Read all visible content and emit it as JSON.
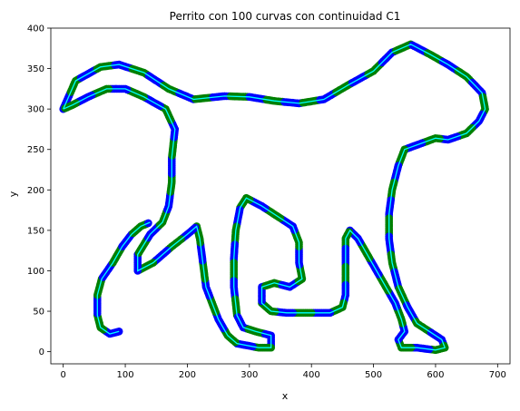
{
  "chart_data": {
    "type": "scatter",
    "title": "Perrito con 100 curvas con continuidad C1",
    "xlabel": "x",
    "ylabel": "y",
    "xlim": [
      -20,
      720
    ],
    "ylim": [
      -15,
      400
    ],
    "xticks": [
      0,
      100,
      200,
      300,
      400,
      500,
      600,
      700
    ],
    "yticks": [
      0,
      50,
      100,
      150,
      200,
      250,
      300,
      350,
      400
    ],
    "grid": false,
    "legend": "none",
    "colors": {
      "points_primary": "#0000ff",
      "points_secondary": "#008000",
      "curve": "#00ffff",
      "curve_alt": "#00ff00"
    },
    "outline": [
      [
        0,
        300
      ],
      [
        20,
        335
      ],
      [
        60,
        352
      ],
      [
        90,
        355
      ],
      [
        130,
        345
      ],
      [
        170,
        325
      ],
      [
        210,
        312
      ],
      [
        260,
        316
      ],
      [
        300,
        315
      ],
      [
        340,
        310
      ],
      [
        380,
        307
      ],
      [
        420,
        312
      ],
      [
        460,
        330
      ],
      [
        500,
        347
      ],
      [
        530,
        370
      ],
      [
        560,
        380
      ],
      [
        590,
        368
      ],
      [
        620,
        355
      ],
      [
        650,
        340
      ],
      [
        675,
        320
      ],
      [
        680,
        300
      ],
      [
        670,
        285
      ],
      [
        650,
        270
      ],
      [
        620,
        262
      ],
      [
        600,
        264
      ],
      [
        575,
        257
      ],
      [
        550,
        250
      ],
      [
        540,
        230
      ],
      [
        530,
        200
      ],
      [
        525,
        170
      ],
      [
        525,
        140
      ],
      [
        530,
        110
      ],
      [
        540,
        80
      ],
      [
        555,
        55
      ],
      [
        570,
        35
      ],
      [
        590,
        25
      ],
      [
        610,
        15
      ],
      [
        615,
        5
      ],
      [
        600,
        2
      ],
      [
        570,
        5
      ],
      [
        545,
        5
      ],
      [
        540,
        15
      ],
      [
        550,
        25
      ],
      [
        545,
        40
      ],
      [
        535,
        60
      ],
      [
        520,
        80
      ],
      [
        505,
        100
      ],
      [
        490,
        120
      ],
      [
        475,
        140
      ],
      [
        462,
        150
      ],
      [
        455,
        140
      ],
      [
        455,
        100
      ],
      [
        455,
        70
      ],
      [
        450,
        55
      ],
      [
        430,
        48
      ],
      [
        400,
        48
      ],
      [
        360,
        48
      ],
      [
        335,
        50
      ],
      [
        320,
        60
      ],
      [
        320,
        80
      ],
      [
        340,
        85
      ],
      [
        365,
        80
      ],
      [
        385,
        90
      ],
      [
        380,
        110
      ],
      [
        380,
        135
      ],
      [
        370,
        155
      ],
      [
        350,
        165
      ],
      [
        320,
        180
      ],
      [
        295,
        190
      ],
      [
        285,
        178
      ],
      [
        278,
        150
      ],
      [
        275,
        115
      ],
      [
        275,
        80
      ],
      [
        280,
        45
      ],
      [
        290,
        30
      ],
      [
        310,
        25
      ],
      [
        335,
        20
      ],
      [
        335,
        5
      ],
      [
        315,
        5
      ],
      [
        280,
        10
      ],
      [
        265,
        20
      ],
      [
        250,
        40
      ],
      [
        240,
        60
      ],
      [
        230,
        80
      ],
      [
        225,
        110
      ],
      [
        220,
        140
      ],
      [
        215,
        155
      ],
      [
        200,
        145
      ],
      [
        175,
        130
      ],
      [
        145,
        110
      ],
      [
        120,
        100
      ],
      [
        120,
        120
      ],
      [
        140,
        145
      ],
      [
        160,
        160
      ],
      [
        170,
        180
      ],
      [
        175,
        210
      ],
      [
        175,
        240
      ],
      [
        180,
        275
      ],
      [
        165,
        300
      ],
      [
        130,
        315
      ],
      [
        100,
        325
      ],
      [
        70,
        325
      ],
      [
        40,
        315
      ],
      [
        15,
        305
      ],
      [
        0,
        300
      ]
    ],
    "loop_leg": [
      [
        90,
        25
      ],
      [
        75,
        22
      ],
      [
        60,
        30
      ],
      [
        55,
        45
      ],
      [
        55,
        70
      ],
      [
        62,
        90
      ],
      [
        80,
        110
      ],
      [
        95,
        130
      ],
      [
        110,
        145
      ],
      [
        125,
        155
      ],
      [
        140,
        160
      ]
    ]
  }
}
